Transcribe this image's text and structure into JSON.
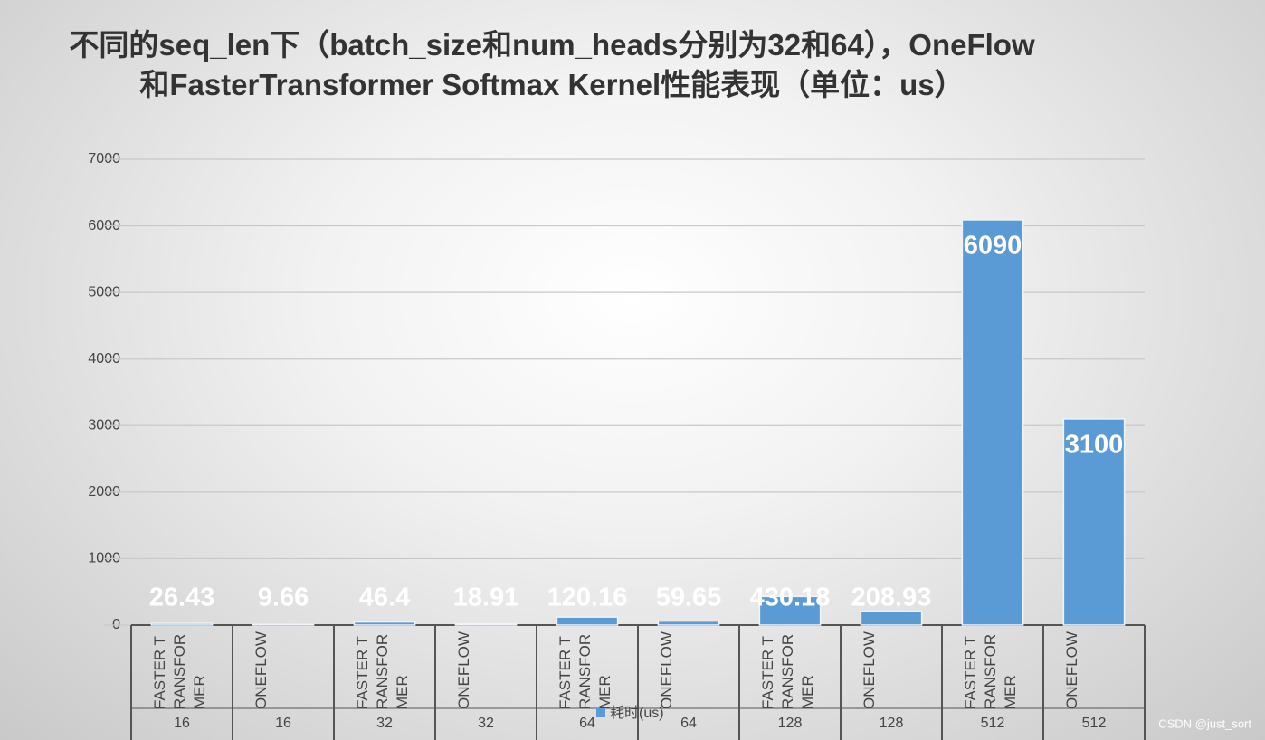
{
  "chart_data": {
    "type": "bar",
    "title": "不同的seq_len下（batch_size和num_heads分别为32和64），OneFlow和FasterTransformer Softmax Kernel性能表现（单位：us）",
    "categories": [
      "FASTER TRANSFORMER",
      "ONEFLOW",
      "FASTER TRANSFORMER",
      "ONEFLOW",
      "FASTER TRANSFORMER",
      "ONEFLOW",
      "FASTER TRANSFORMER",
      "ONEFLOW",
      "FASTER TRANSFORMER",
      "ONEFLOW"
    ],
    "groups": [
      "16",
      "16",
      "32",
      "32",
      "64",
      "64",
      "128",
      "128",
      "512",
      "512"
    ],
    "series": [
      {
        "name": "耗时(us)",
        "color": "#5b9bd5",
        "values": [
          26.43,
          9.66,
          46.4,
          18.91,
          120.16,
          59.65,
          430.18,
          208.93,
          6090,
          3100
        ]
      }
    ],
    "ylim": [
      0,
      7000
    ],
    "yticks": [
      0,
      1000,
      2000,
      3000,
      4000,
      5000,
      6000,
      7000
    ],
    "grid": true,
    "watermark": "CSDN @just_sort"
  }
}
